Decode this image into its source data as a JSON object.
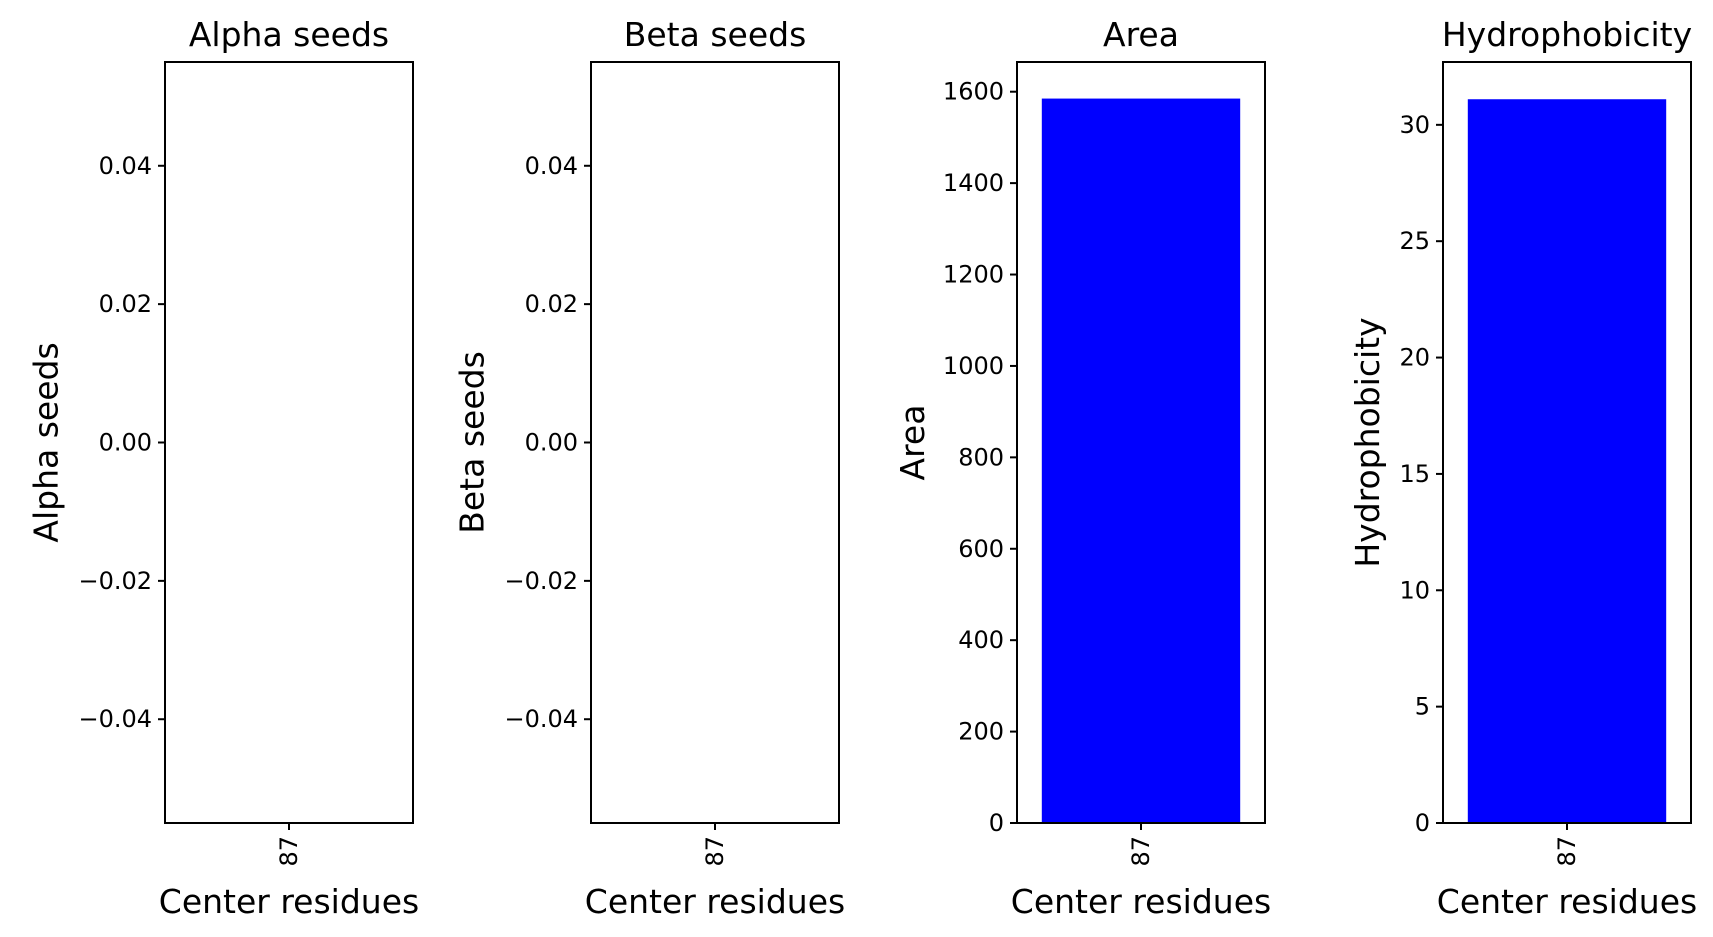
{
  "chart_data": [
    {
      "type": "bar",
      "title": "Alpha seeds",
      "xlabel": "Center residues",
      "ylabel": "Alpha seeds",
      "categories": [
        "87"
      ],
      "values": [
        0
      ],
      "ylim": [
        -0.055,
        0.055
      ],
      "yticks": [
        -0.04,
        -0.02,
        0.0,
        0.02,
        0.04
      ],
      "ytick_labels": [
        "−0.04",
        "−0.02",
        "0.00",
        "0.02",
        "0.04"
      ],
      "bar_color": "#0000ff",
      "grid": false
    },
    {
      "type": "bar",
      "title": "Beta seeds",
      "xlabel": "Center residues",
      "ylabel": "Beta seeds",
      "categories": [
        "87"
      ],
      "values": [
        0
      ],
      "ylim": [
        -0.055,
        0.055
      ],
      "yticks": [
        -0.04,
        -0.02,
        0.0,
        0.02,
        0.04
      ],
      "ytick_labels": [
        "−0.04",
        "−0.02",
        "0.00",
        "0.02",
        "0.04"
      ],
      "bar_color": "#0000ff",
      "grid": false
    },
    {
      "type": "bar",
      "title": "Area",
      "xlabel": "Center residues",
      "ylabel": "Area",
      "categories": [
        "87"
      ],
      "values": [
        1585
      ],
      "ylim": [
        0,
        1665
      ],
      "yticks": [
        0,
        200,
        400,
        600,
        800,
        1000,
        1200,
        1400,
        1600
      ],
      "ytick_labels": [
        "0",
        "200",
        "400",
        "600",
        "800",
        "1000",
        "1200",
        "1400",
        "1600"
      ],
      "bar_color": "#0000ff",
      "grid": false
    },
    {
      "type": "bar",
      "title": "Hydrophobicity",
      "xlabel": "Center residues",
      "ylabel": "Hydrophobicity",
      "categories": [
        "87"
      ],
      "values": [
        31.1
      ],
      "ylim": [
        0,
        32.7
      ],
      "yticks": [
        0,
        5,
        10,
        15,
        20,
        25,
        30
      ],
      "ytick_labels": [
        "0",
        "5",
        "10",
        "15",
        "20",
        "25",
        "30"
      ],
      "bar_color": "#0000ff",
      "grid": false
    }
  ]
}
